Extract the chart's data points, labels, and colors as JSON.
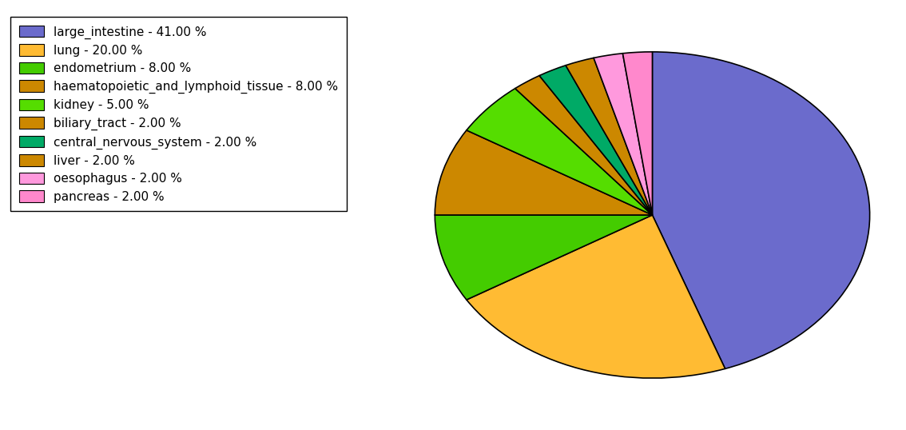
{
  "labels": [
    "large_intestine",
    "lung",
    "endometrium",
    "haematopoietic_and_lymphoid_tissue",
    "kidney",
    "biliary_tract",
    "central_nervous_system",
    "liver",
    "oesophagus",
    "pancreas"
  ],
  "values": [
    41,
    20,
    8,
    8,
    5,
    2,
    2,
    2,
    2,
    2
  ],
  "colors": [
    "#6B6BCC",
    "#FFBB33",
    "#44CC00",
    "#CC8800",
    "#55DD00",
    "#CC8800",
    "#00AA66",
    "#CC8800",
    "#FF99DD",
    "#FF88CC"
  ],
  "legend_labels": [
    "large_intestine - 41.00 %",
    "lung - 20.00 %",
    "endometrium - 8.00 %",
    "haematopoietic_and_lymphoid_tissue - 8.00 %",
    "kidney - 5.00 %",
    "biliary_tract - 2.00 %",
    "central_nervous_system - 2.00 %",
    "liver - 2.00 %",
    "oesophagus - 2.00 %",
    "pancreas - 2.00 %"
  ],
  "legend_colors": [
    "#6B6BCC",
    "#FFBB33",
    "#44CC00",
    "#CC8800",
    "#55DD00",
    "#CC8800",
    "#00AA66",
    "#CC8800",
    "#FF99DD",
    "#FF88CC"
  ],
  "startangle": 90,
  "figsize": [
    11.34,
    5.38
  ],
  "dpi": 100
}
